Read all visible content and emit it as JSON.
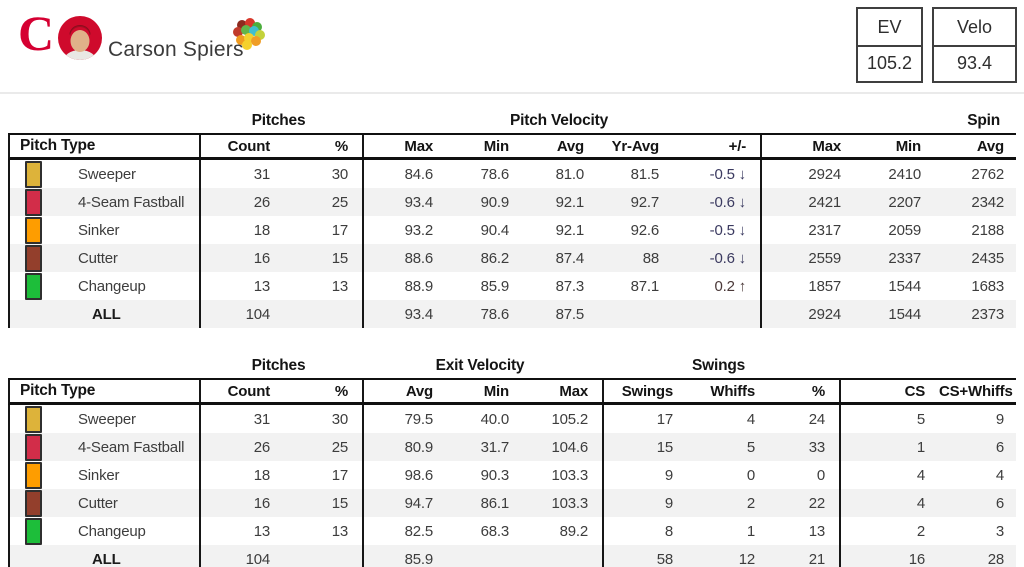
{
  "header": {
    "team_logo_letter": "C",
    "player_name": "Carson Spiers",
    "stat_boxes": [
      {
        "label": "EV",
        "value": "105.2"
      },
      {
        "label": "Velo",
        "value": "93.4"
      }
    ]
  },
  "colors": {
    "reds_red": "#D50032",
    "negative_diff": "#3B3A60",
    "positive_diff": "#4A3838",
    "row_stripe": "#F2F2F2",
    "pitch_colors": {
      "Sweeper": "#DDB33A",
      "4-Seam Fastball": "#D22D49",
      "Sinker": "#FE9D00",
      "Cutter": "#933F2C",
      "Changeup": "#1DBE3A"
    }
  },
  "tables": [
    {
      "groups": [
        {
          "label": ""
        },
        {
          "label": "Pitches"
        },
        {
          "label": "Pitch Velocity"
        },
        {
          "label": "Spin"
        }
      ],
      "columns": [
        "Pitch Type",
        "Count",
        "%",
        "Max",
        "Min",
        "Avg",
        "Yr-Avg",
        "+/-",
        "Max",
        "Min",
        "Avg"
      ],
      "rows": [
        {
          "pitch": "Sweeper",
          "color": "#DDB33A",
          "cells": [
            {
              "t": "31"
            },
            {
              "t": "30"
            },
            {
              "t": "84.6"
            },
            {
              "t": "78.6"
            },
            {
              "t": "81.0"
            },
            {
              "t": "81.5"
            },
            {
              "t": "-0.5 ↓",
              "c": "neg"
            },
            {
              "t": "2924"
            },
            {
              "t": "2410"
            },
            {
              "t": "2762"
            }
          ]
        },
        {
          "pitch": "4-Seam Fastball",
          "color": "#D22D49",
          "cells": [
            {
              "t": "26"
            },
            {
              "t": "25"
            },
            {
              "t": "93.4"
            },
            {
              "t": "90.9"
            },
            {
              "t": "92.1"
            },
            {
              "t": "92.7"
            },
            {
              "t": "-0.6 ↓",
              "c": "neg"
            },
            {
              "t": "2421"
            },
            {
              "t": "2207"
            },
            {
              "t": "2342"
            }
          ]
        },
        {
          "pitch": "Sinker",
          "color": "#FE9D00",
          "cells": [
            {
              "t": "18"
            },
            {
              "t": "17"
            },
            {
              "t": "93.2"
            },
            {
              "t": "90.4"
            },
            {
              "t": "92.1"
            },
            {
              "t": "92.6"
            },
            {
              "t": "-0.5 ↓",
              "c": "neg"
            },
            {
              "t": "2317"
            },
            {
              "t": "2059"
            },
            {
              "t": "2188"
            }
          ]
        },
        {
          "pitch": "Cutter",
          "color": "#933F2C",
          "cells": [
            {
              "t": "16"
            },
            {
              "t": "15"
            },
            {
              "t": "88.6"
            },
            {
              "t": "86.2"
            },
            {
              "t": "87.4"
            },
            {
              "t": "88"
            },
            {
              "t": "-0.6 ↓",
              "c": "neg"
            },
            {
              "t": "2559"
            },
            {
              "t": "2337"
            },
            {
              "t": "2435"
            }
          ]
        },
        {
          "pitch": "Changeup",
          "color": "#1DBE3A",
          "cells": [
            {
              "t": "13"
            },
            {
              "t": "13"
            },
            {
              "t": "88.9"
            },
            {
              "t": "85.9"
            },
            {
              "t": "87.3"
            },
            {
              "t": "87.1"
            },
            {
              "t": "0.2 ↑",
              "c": "pos"
            },
            {
              "t": "1857"
            },
            {
              "t": "1544"
            },
            {
              "t": "1683"
            }
          ]
        },
        {
          "pitch": "ALL",
          "bold": true,
          "cells": [
            {
              "t": "104"
            },
            {
              "t": ""
            },
            {
              "t": "93.4"
            },
            {
              "t": "78.6"
            },
            {
              "t": "87.5"
            },
            {
              "t": ""
            },
            {
              "t": ""
            },
            {
              "t": "2924"
            },
            {
              "t": "1544"
            },
            {
              "t": "2373"
            }
          ]
        }
      ]
    },
    {
      "groups": [
        {
          "label": ""
        },
        {
          "label": "Pitches"
        },
        {
          "label": "Exit Velocity"
        },
        {
          "label": "Swings"
        },
        {
          "label": ""
        }
      ],
      "columns": [
        "Pitch Type",
        "Count",
        "%",
        "Avg",
        "Min",
        "Max",
        "Swings",
        "Whiffs",
        "%",
        "CS",
        "CS+Whiffs"
      ],
      "rows": [
        {
          "pitch": "Sweeper",
          "color": "#DDB33A",
          "cells": [
            {
              "t": "31"
            },
            {
              "t": "30"
            },
            {
              "t": "79.5"
            },
            {
              "t": "40.0"
            },
            {
              "t": "105.2"
            },
            {
              "t": "17"
            },
            {
              "t": "4"
            },
            {
              "t": "24"
            },
            {
              "t": "5"
            },
            {
              "t": "9"
            }
          ]
        },
        {
          "pitch": "4-Seam Fastball",
          "color": "#D22D49",
          "cells": [
            {
              "t": "26"
            },
            {
              "t": "25"
            },
            {
              "t": "80.9"
            },
            {
              "t": "31.7"
            },
            {
              "t": "104.6"
            },
            {
              "t": "15"
            },
            {
              "t": "5"
            },
            {
              "t": "33"
            },
            {
              "t": "1"
            },
            {
              "t": "6"
            }
          ]
        },
        {
          "pitch": "Sinker",
          "color": "#FE9D00",
          "cells": [
            {
              "t": "18"
            },
            {
              "t": "17"
            },
            {
              "t": "98.6"
            },
            {
              "t": "90.3"
            },
            {
              "t": "103.3"
            },
            {
              "t": "9"
            },
            {
              "t": "0"
            },
            {
              "t": "0"
            },
            {
              "t": "4"
            },
            {
              "t": "4"
            }
          ]
        },
        {
          "pitch": "Cutter",
          "color": "#933F2C",
          "cells": [
            {
              "t": "16"
            },
            {
              "t": "15"
            },
            {
              "t": "94.7"
            },
            {
              "t": "86.1"
            },
            {
              "t": "103.3"
            },
            {
              "t": "9"
            },
            {
              "t": "2"
            },
            {
              "t": "22"
            },
            {
              "t": "4"
            },
            {
              "t": "6"
            }
          ]
        },
        {
          "pitch": "Changeup",
          "color": "#1DBE3A",
          "cells": [
            {
              "t": "13"
            },
            {
              "t": "13"
            },
            {
              "t": "82.5"
            },
            {
              "t": "68.3"
            },
            {
              "t": "89.2"
            },
            {
              "t": "8"
            },
            {
              "t": "1"
            },
            {
              "t": "13"
            },
            {
              "t": "2"
            },
            {
              "t": "3"
            }
          ]
        },
        {
          "pitch": "ALL",
          "bold": true,
          "cells": [
            {
              "t": "104"
            },
            {
              "t": ""
            },
            {
              "t": "85.9"
            },
            {
              "t": ""
            },
            {
              "t": ""
            },
            {
              "t": "58"
            },
            {
              "t": "12"
            },
            {
              "t": "21"
            },
            {
              "t": "16"
            },
            {
              "t": "28"
            }
          ]
        }
      ]
    }
  ]
}
